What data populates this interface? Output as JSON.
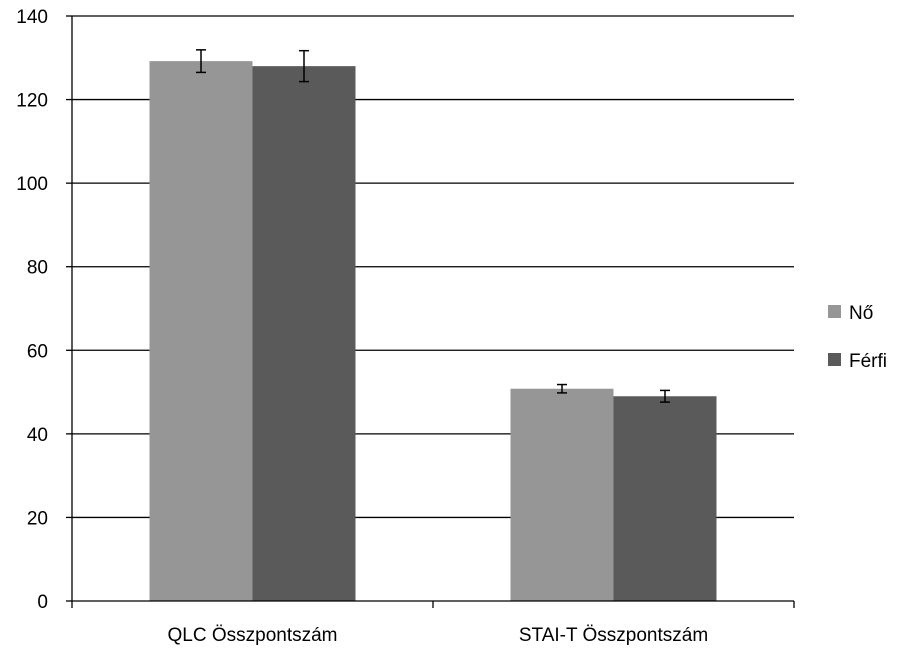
{
  "chart_data": {
    "type": "bar",
    "title": "",
    "xlabel": "",
    "ylabel": "",
    "categories": [
      "QLC Összpontszám",
      "STAI-T Összpontszám"
    ],
    "series": [
      {
        "name": "Nő",
        "color": "#969696",
        "values": [
          129.2,
          50.8
        ],
        "error": [
          2.7,
          1.0
        ]
      },
      {
        "name": "Férfi",
        "color": "#5a5a5a",
        "values": [
          128.0,
          49.0
        ],
        "error": [
          3.7,
          1.4
        ]
      }
    ],
    "ylim": [
      0,
      140
    ],
    "yticks": [
      0,
      20,
      40,
      60,
      80,
      100,
      120,
      140
    ],
    "grid": true,
    "legend": "right"
  }
}
